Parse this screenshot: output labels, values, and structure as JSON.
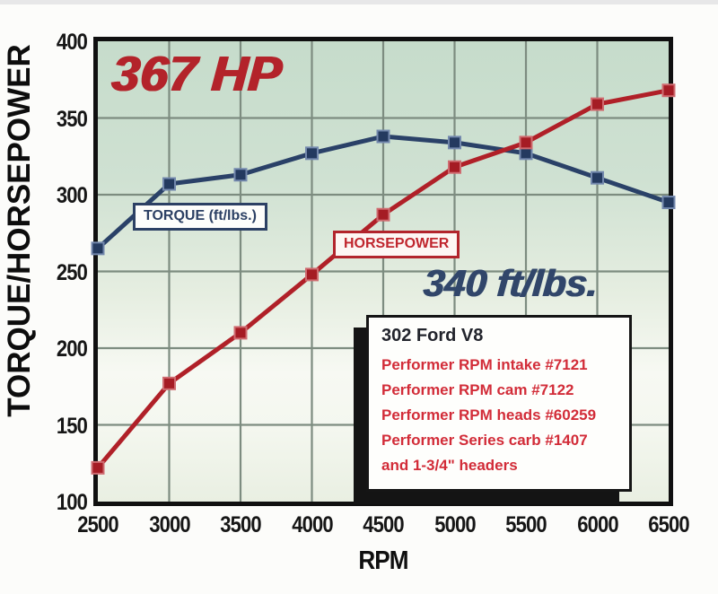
{
  "y_axis": {
    "title": "TORQUE/HORSEPOWER",
    "ticks": [
      400,
      350,
      300,
      250,
      200,
      150,
      100
    ]
  },
  "x_axis": {
    "title": "RPM",
    "ticks": [
      2500,
      3000,
      3500,
      4000,
      4500,
      5000,
      5500,
      6000,
      6500
    ]
  },
  "annotations": {
    "hp_peak": "367 HP",
    "torque_peak": "340 ft/lbs."
  },
  "series_labels": {
    "torque": "TORQUE (ft/lbs.)",
    "horsepower": "HORSEPOWER"
  },
  "info_box": {
    "title": "302 Ford V8",
    "lines": [
      "Performer RPM intake #7121",
      "Performer RPM cam #7122",
      "Performer RPM heads #60259",
      "Performer Series carb #1407",
      "and 1-3/4\" headers"
    ]
  },
  "colors": {
    "torque_line": "#2a4168",
    "torque_marker_fill": "#243a5f",
    "torque_marker_edge": "#7388ad",
    "hp_line": "#b02028",
    "hp_marker_fill": "#a51c24",
    "hp_marker_edge": "#cf6b70",
    "grid": "#7d8c80",
    "hp_text": "#b3232a",
    "torque_text": "#31466a",
    "plot_border": "#101010",
    "plot_bg_top": "#c6dccb",
    "plot_bg_bottom": "#e9efe2"
  },
  "chart_data": {
    "type": "line",
    "x": [
      2500,
      3000,
      3500,
      4000,
      4500,
      5000,
      5500,
      6000,
      6500
    ],
    "series": [
      {
        "name": "Torque (ft/lbs.)",
        "values": [
          265,
          307,
          313,
          327,
          338,
          334,
          327,
          311,
          295
        ]
      },
      {
        "name": "Horsepower",
        "values": [
          122,
          177,
          210,
          248,
          287,
          318,
          334,
          359,
          368
        ]
      }
    ],
    "title": "",
    "xlabel": "RPM",
    "ylabel": "TORQUE/HORSEPOWER",
    "xlim": [
      2500,
      6500
    ],
    "ylim": [
      100,
      400
    ],
    "x_tick_step": 500,
    "y_tick_step": 50,
    "grid": true,
    "marker": "square",
    "annotations": [
      "367 HP",
      "340 ft/lbs."
    ]
  }
}
